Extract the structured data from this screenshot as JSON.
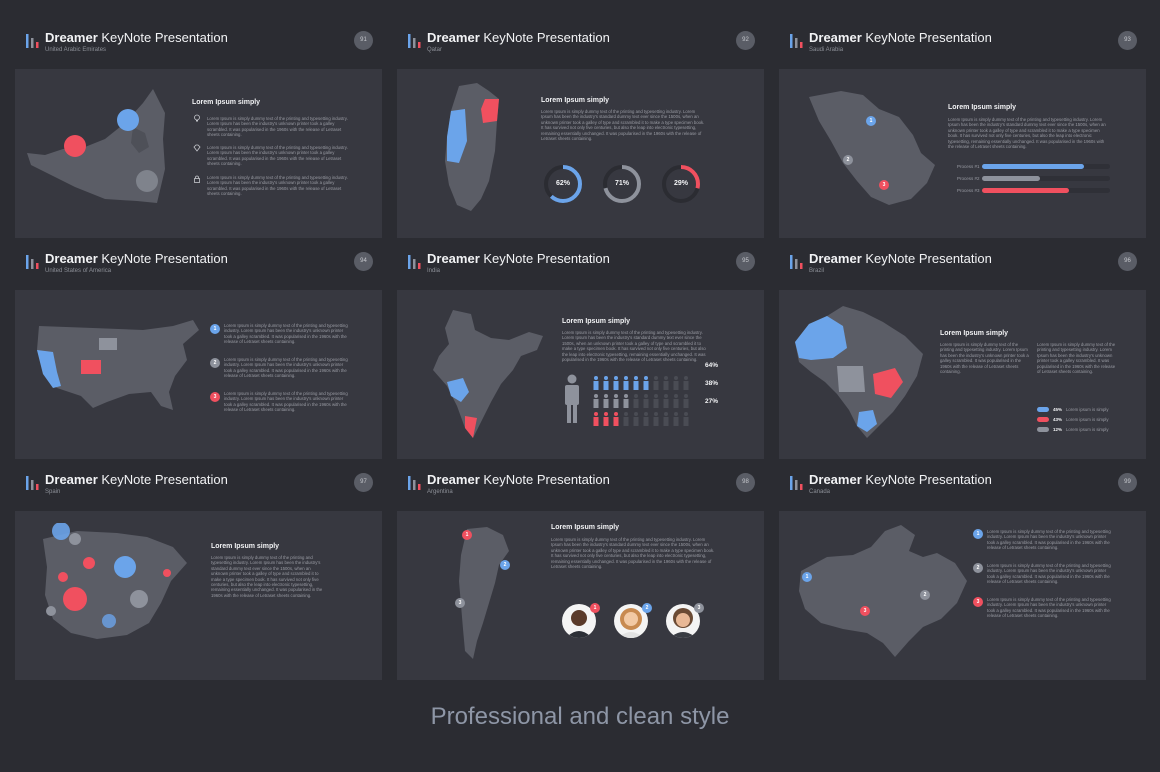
{
  "deck": {
    "title_bold": "Dreamer",
    "title_rest": "KeyNote Presentation",
    "lorem_heading": "Lorem Ipsum simply",
    "lorem_long": "Lorem Ipsum is simply dummy text of the printing and typesetting industry. Lorem Ipsum has been the industry's standard dummy text ever since the 1500s, when an unknown printer took a galley of type and scrambled it to make a type specimen book. It has survived not only five centuries, but also the leap into electronic typesetting, remaining essentially unchanged. It was popularised in the 1960s with the release of Letraset sheets containing.",
    "lorem_short": "Lorem Ipsum is simply dummy text of the printing and typesetting industry. Lorem Ipsum has been the industry's unknown printer took a galley scrambled. It was popularised in the 1960s with the release of Letraset sheets containing."
  },
  "slides": [
    {
      "country": "United Arabic Emirates",
      "page": "91"
    },
    {
      "country": "Qatar",
      "page": "92",
      "donuts": [
        {
          "label": "62%",
          "value": 62,
          "color": "#6ba4ea"
        },
        {
          "label": "71%",
          "value": 71,
          "color": "#8e929c"
        },
        {
          "label": "29%",
          "value": 29,
          "color": "#f0505f"
        }
      ]
    },
    {
      "country": "Saudi Arabia",
      "page": "93",
      "bars": [
        {
          "label": "Process #1",
          "value": 0.8,
          "color": "#6ba4ea"
        },
        {
          "label": "Process #2",
          "value": 0.45,
          "color": "#8e929c"
        },
        {
          "label": "Process #3",
          "value": 0.68,
          "color": "#f0505f"
        }
      ]
    },
    {
      "country": "United States of America",
      "page": "94"
    },
    {
      "country": "India",
      "page": "95",
      "people": [
        {
          "pct": "64%",
          "color": "#6ba4ea"
        },
        {
          "pct": "38%",
          "color": "#8e929c"
        },
        {
          "pct": "27%",
          "color": "#f0505f"
        }
      ]
    },
    {
      "country": "Brazil",
      "page": "96",
      "legend": [
        {
          "pct": "45%",
          "text": "Lorem ipsum is simply",
          "color": "#6ba4ea"
        },
        {
          "pct": "43%",
          "text": "Lorem ipsum is simply",
          "color": "#f0505f"
        },
        {
          "pct": "12%",
          "text": "Lorem ipsum is simply",
          "color": "#8e929c"
        }
      ]
    },
    {
      "country": "Spain",
      "page": "97"
    },
    {
      "country": "Argentina",
      "page": "98"
    },
    {
      "country": "Canada",
      "page": "99"
    }
  ],
  "colors": {
    "blue": "#6ba4ea",
    "red": "#f0505f",
    "gray": "#8e929c",
    "bg": "#2b2c32",
    "card": "#373840",
    "map": "#5b5d66"
  },
  "icons": [
    "logo-bars-icon",
    "bulb-icon",
    "diamond-icon",
    "lock-icon",
    "person-icon"
  ],
  "footer": {
    "caption": "Professional and clean style"
  }
}
